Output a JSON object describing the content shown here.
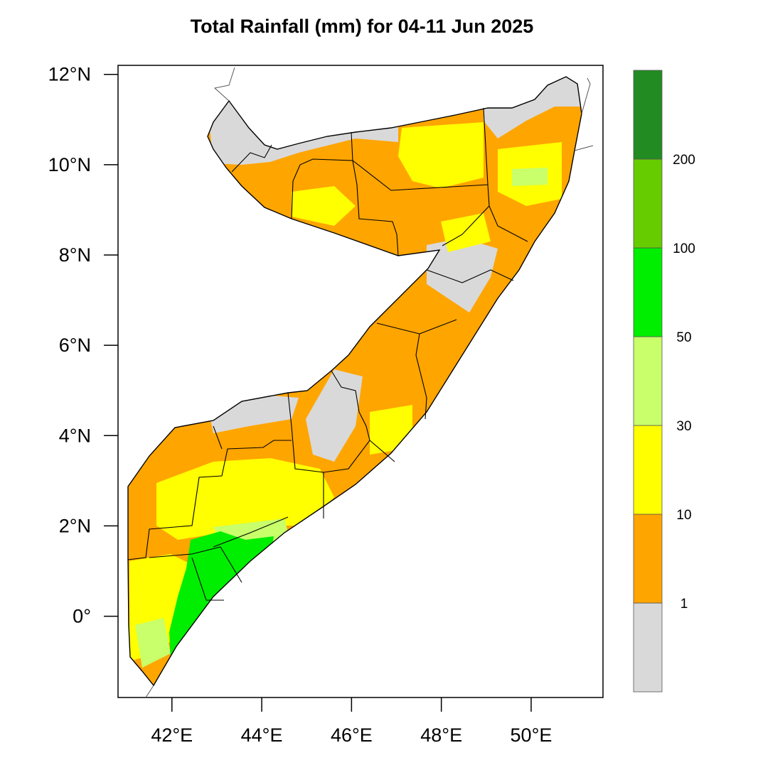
{
  "map": {
    "title": "Total Rainfall (mm) for 04-11 Jun 2025",
    "lat_ticks": [
      {
        "value": 12,
        "label": "12°N"
      },
      {
        "value": 10,
        "label": "10°N"
      },
      {
        "value": 8,
        "label": "8°N"
      },
      {
        "value": 6,
        "label": "6°N"
      },
      {
        "value": 4,
        "label": "4°N"
      },
      {
        "value": 2,
        "label": "2°N"
      },
      {
        "value": 0,
        "label": "0°"
      }
    ],
    "lon_ticks": [
      {
        "value": 42,
        "label": "42°E"
      },
      {
        "value": 44,
        "label": "44°E"
      },
      {
        "value": 46,
        "label": "46°E"
      },
      {
        "value": 48,
        "label": "48°E"
      },
      {
        "value": 50,
        "label": "50°E"
      }
    ],
    "extent": {
      "lon_min": 40.8,
      "lon_max": 51.6,
      "lat_min": -1.8,
      "lat_max": 12.2
    }
  },
  "legend": {
    "bins": [
      {
        "label": "",
        "color": "#d9d9d9"
      },
      {
        "label": "1",
        "color": "#ffa500"
      },
      {
        "label": "10",
        "color": "#ffff00"
      },
      {
        "label": "30",
        "color": "#c8ff6a"
      },
      {
        "label": "50",
        "color": "#00ee00"
      },
      {
        "label": "100",
        "color": "#66cc00"
      },
      {
        "label": "200",
        "color": "#228b22"
      }
    ]
  }
}
